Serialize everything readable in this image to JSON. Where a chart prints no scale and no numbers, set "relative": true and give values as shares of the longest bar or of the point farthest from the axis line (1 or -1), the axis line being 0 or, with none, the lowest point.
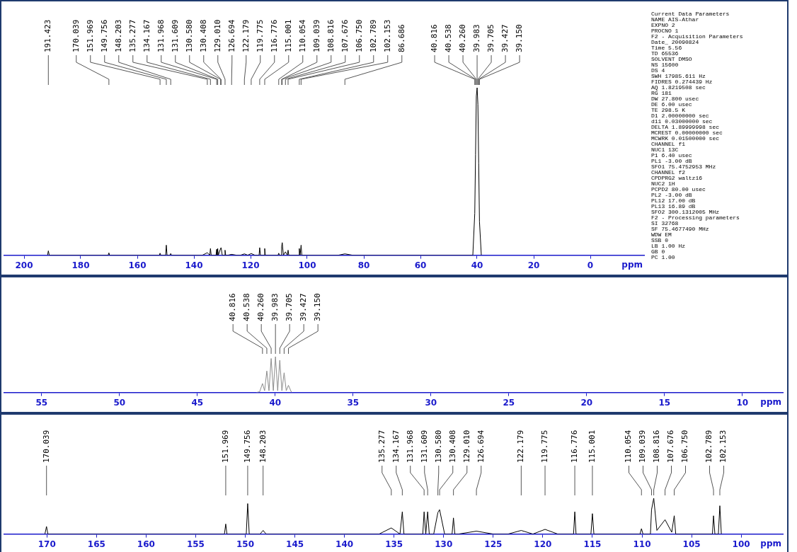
{
  "chart_data": [
    {
      "type": "line",
      "relative": true,
      "xlabel": "ppm",
      "xlim": [
        207,
        -19
      ],
      "xticks": [
        200,
        180,
        160,
        140,
        120,
        100,
        80,
        60,
        40,
        20,
        0
      ],
      "series": [
        {
          "color": "#000000",
          "x": [
            191.7,
            191.423,
            191.1,
            170.3,
            170.039,
            169.8,
            152.2,
            151.969,
            151.7,
            150.0,
            149.756,
            149.5,
            148.5,
            148.203,
            147.9,
            137,
            135.277,
            134.4,
            134.167,
            133.9,
            132.2,
            131.968,
            131.8,
            131.609,
            131.4,
            130.58,
            130.408,
            130.0,
            129.2,
            129.01,
            128.8,
            128,
            126.694,
            125,
            123.5,
            122.179,
            121,
            119.775,
            118.5,
            117.0,
            116.776,
            116.5,
            115.2,
            115.001,
            114.8,
            110.3,
            110.054,
            109.8,
            109.2,
            109.039,
            108.816,
            108.4,
            107.676,
            107.0,
            106.75,
            106.5,
            103.0,
            102.789,
            102.5,
            102.153,
            101.9,
            89,
            86.686,
            84,
            41.5,
            40.816,
            40.538,
            40.26,
            39.983,
            39.705,
            39.427,
            39.15,
            38.5
          ],
          "values": [
            0,
            0.026,
            0,
            0,
            0.014,
            0,
            0,
            0.012,
            0,
            0,
            0.06,
            0,
            0,
            0.01,
            0,
            0,
            0.015,
            0,
            0.04,
            0,
            0,
            0.035,
            0,
            0.04,
            0,
            0.04,
            0.045,
            0,
            0,
            0.03,
            0,
            0,
            0.005,
            0,
            0,
            0.008,
            0,
            0.01,
            0,
            0,
            0.045,
            0,
            0,
            0.04,
            0,
            0,
            0.012,
            0,
            0,
            0.05,
            0.075,
            0,
            0.02,
            0,
            0.03,
            0,
            0,
            0.04,
            0,
            0.06,
            0,
            0,
            0.008,
            0,
            0,
            0.25,
            0.6,
            0.95,
            1,
            0.9,
            0.55,
            0.2,
            0
          ]
        }
      ],
      "annotations": [
        {
          "text": "191.423",
          "x": 191.423
        },
        {
          "text": "170.039",
          "x": 170.039
        },
        {
          "text": "151.969",
          "x": 151.969
        },
        {
          "text": "149.756",
          "x": 149.756
        },
        {
          "text": "148.203",
          "x": 148.203
        },
        {
          "text": "135.277",
          "x": 135.277
        },
        {
          "text": "134.167",
          "x": 134.167
        },
        {
          "text": "131.968",
          "x": 131.968
        },
        {
          "text": "131.609",
          "x": 131.609
        },
        {
          "text": "130.580",
          "x": 130.58
        },
        {
          "text": "130.408",
          "x": 130.408
        },
        {
          "text": "129.010",
          "x": 129.01
        },
        {
          "text": "126.694",
          "x": 126.694
        },
        {
          "text": "122.179",
          "x": 122.179
        },
        {
          "text": "119.775",
          "x": 119.775
        },
        {
          "text": "116.776",
          "x": 116.776
        },
        {
          "text": "115.001",
          "x": 115.001
        },
        {
          "text": "110.054",
          "x": 110.054
        },
        {
          "text": "109.039",
          "x": 109.039
        },
        {
          "text": "108.816",
          "x": 108.816
        },
        {
          "text": "107.676",
          "x": 107.676
        },
        {
          "text": "106.750",
          "x": 106.75
        },
        {
          "text": "102.789",
          "x": 102.789
        },
        {
          "text": "102.153",
          "x": 102.153
        },
        {
          "text": "86.686",
          "x": 86.686
        },
        {
          "text": "40.816",
          "x": 40.816
        },
        {
          "text": "40.538",
          "x": 40.538
        },
        {
          "text": "40.260",
          "x": 40.26
        },
        {
          "text": "39.983",
          "x": 39.983
        },
        {
          "text": "39.705",
          "x": 39.705
        },
        {
          "text": "39.427",
          "x": 39.427
        },
        {
          "text": "39.150",
          "x": 39.15
        },
        "Current Data Parameters",
        "NAME AIS-Athar",
        "EXPNO 2",
        "PROCNO 1",
        "F2 - Acquisition Parameters",
        "Date_ 20090824",
        "Time 5.56",
        "TD 65536",
        "SOLVENT DMSO",
        "NS 15600",
        "DS 4",
        "SWH 17985.611 Hz",
        "FIDRES 0.274439 Hz",
        "AQ 1.8219508 sec",
        "RG 181",
        "DW 27.800 usec",
        "DE 6.00 usec",
        "TE 298.5 K",
        "D1 2.00000000 sec",
        "d11 0.03000000 sec",
        "DELTA 1.89999998 sec",
        "MCREST 0.00000000 sec",
        "MCWRK 0.01500000 sec",
        "CHANNEL f1",
        "NUC1 13C",
        "P1 6.40 usec",
        "PL1 -3.00 dB",
        "SFO1 75.4752953 MHz",
        "CHANNEL f2",
        "CPDPRG2 waltz16",
        "NUC2 1H",
        "PCPD2 80.00 usec",
        "PL2 -3.00 dB",
        "PL12 17.00 dB",
        "PL13 16.89 dB",
        "SFO2 300.1312005 MHz",
        "F2 - Processing parameters",
        "SI 32768",
        "SF 75.4677490 MHz",
        "WDW EM",
        "SSB 0",
        "LB 1.00 Hz",
        "GB 0",
        "PC 1.00"
      ]
    },
    {
      "type": "line",
      "relative": true,
      "xlabel": "ppm",
      "xlim": [
        57.4,
        7.4
      ],
      "xticks": [
        55,
        50,
        45,
        40,
        35,
        30,
        25,
        20,
        15,
        10
      ],
      "series": [
        {
          "color": "#8c8c8c",
          "x": [
            41.2,
            41.0,
            40.816,
            40.68,
            40.538,
            40.4,
            40.26,
            40.12,
            39.983,
            39.84,
            39.705,
            39.57,
            39.427,
            39.29,
            39.15,
            38.95
          ],
          "values": [
            0,
            0.02,
            0.25,
            0.05,
            0.6,
            0.05,
            0.95,
            0.05,
            1,
            0.05,
            0.9,
            0.05,
            0.55,
            0.05,
            0.2,
            0
          ]
        }
      ],
      "annotations": [
        {
          "text": "40.816",
          "x": 40.816
        },
        {
          "text": "40.538",
          "x": 40.538
        },
        {
          "text": "40.260",
          "x": 40.26
        },
        {
          "text": "39.983",
          "x": 39.983
        },
        {
          "text": "39.705",
          "x": 39.705
        },
        {
          "text": "39.427",
          "x": 39.427
        },
        {
          "text": "39.150",
          "x": 39.15
        }
      ]
    },
    {
      "type": "line",
      "relative": true,
      "xlabel": "ppm",
      "xlim": [
        174.3,
        95.8
      ],
      "xticks": [
        170,
        165,
        160,
        155,
        150,
        145,
        140,
        135,
        130,
        125,
        120,
        115,
        110,
        105,
        100
      ],
      "series": [
        {
          "color": "#000000",
          "x": [
            170.2,
            170.039,
            169.9,
            152.1,
            151.969,
            151.85,
            149.9,
            149.756,
            149.6,
            148.5,
            148.203,
            147.9,
            136.5,
            135.277,
            134.4,
            134.167,
            134.0,
            132.1,
            131.968,
            131.8,
            131.609,
            131.45,
            131.0,
            130.58,
            130.408,
            129.9,
            129.15,
            129.01,
            128.87,
            128.5,
            126.694,
            125,
            123.5,
            122.179,
            121,
            119.775,
            118.5,
            116.9,
            116.776,
            116.65,
            115.15,
            115.001,
            114.85,
            110.2,
            110.054,
            109.9,
            109.15,
            109.039,
            108.816,
            108.5,
            107.676,
            107.0,
            106.75,
            106.6,
            102.9,
            102.789,
            102.65,
            102.3,
            102.153,
            102.0
          ],
          "values": [
            0,
            0.21,
            0,
            0,
            0.28,
            0,
            0,
            0.85,
            0,
            0,
            0.1,
            0,
            0,
            0.17,
            0,
            0.62,
            0,
            0,
            0.62,
            0,
            0.62,
            0,
            0,
            0.6,
            0.68,
            0,
            0,
            0.45,
            0,
            0,
            0.08,
            0,
            0,
            0.1,
            0,
            0.13,
            0,
            0,
            0.62,
            0,
            0,
            0.57,
            0,
            0,
            0.15,
            0,
            0,
            0.68,
            1,
            0.1,
            0.4,
            0.05,
            0.51,
            0,
            0,
            0.51,
            0,
            0,
            0.79,
            0
          ]
        }
      ],
      "annotations": [
        {
          "text": "170.039",
          "x": 170.039
        },
        {
          "text": "151.969",
          "x": 151.969
        },
        {
          "text": "149.756",
          "x": 149.756
        },
        {
          "text": "148.203",
          "x": 148.203
        },
        {
          "text": "135.277",
          "x": 135.277
        },
        {
          "text": "134.167",
          "x": 134.167
        },
        {
          "text": "131.968",
          "x": 131.968
        },
        {
          "text": "131.609",
          "x": 131.609
        },
        {
          "text": "130.580",
          "x": 130.58
        },
        {
          "text": "130.408",
          "x": 130.408
        },
        {
          "text": "129.010",
          "x": 129.01
        },
        {
          "text": "126.694",
          "x": 126.694
        },
        {
          "text": "122.179",
          "x": 122.179
        },
        {
          "text": "119.775",
          "x": 119.775
        },
        {
          "text": "116.776",
          "x": 116.776
        },
        {
          "text": "115.001",
          "x": 115.001
        },
        {
          "text": "110.054",
          "x": 110.054
        },
        {
          "text": "109.039",
          "x": 109.039
        },
        {
          "text": "108.816",
          "x": 108.816
        },
        {
          "text": "107.676",
          "x": 107.676
        },
        {
          "text": "106.750",
          "x": 106.75
        },
        {
          "text": "102.789",
          "x": 102.789
        },
        {
          "text": "102.153",
          "x": 102.153
        }
      ]
    }
  ]
}
